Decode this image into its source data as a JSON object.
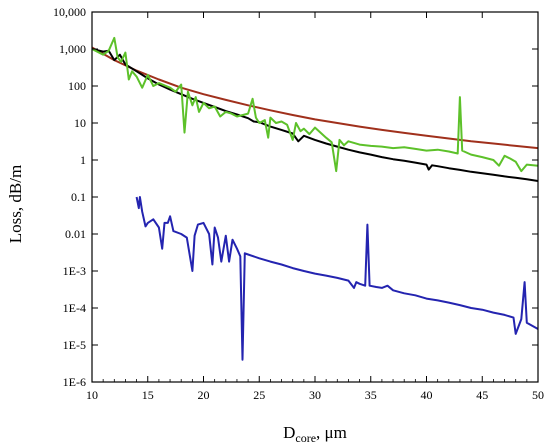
{
  "chart_data": {
    "type": "line",
    "xlabel": "D",
    "xlabel_sub": "core",
    "xlabel_unit": ", μm",
    "ylabel": "Loss, dB/m",
    "xlim": [
      10,
      50
    ],
    "ylim": [
      1e-06,
      10000
    ],
    "yscale": "log",
    "grid": false,
    "x_ticks": [
      10,
      15,
      20,
      25,
      30,
      35,
      40,
      45,
      50
    ],
    "x_tick_labels": [
      "10",
      "15",
      "20",
      "25",
      "30",
      "35",
      "40",
      "45",
      "50"
    ],
    "y_ticks": [
      1e-06,
      1e-05,
      0.0001,
      0.001,
      0.01,
      0.1,
      1,
      10,
      100,
      1000,
      10000
    ],
    "y_tick_labels": [
      "1E-6",
      "1E-5",
      "1E-4",
      "1E-3",
      "0.01",
      "0.1",
      "1",
      "10",
      "100",
      "1,000",
      "10,000"
    ],
    "series": [
      {
        "color": "#a0301c",
        "x": [
          10,
          12,
          14,
          16,
          18,
          20,
          22,
          24,
          26,
          28,
          30,
          32,
          34,
          36,
          38,
          40,
          42,
          44,
          46,
          48,
          50
        ],
        "y": [
          1100,
          500,
          260,
          150,
          90,
          60,
          42,
          30,
          22,
          16.5,
          12.5,
          10,
          8,
          6.5,
          5.4,
          4.5,
          3.8,
          3.2,
          2.8,
          2.4,
          2.1
        ]
      },
      {
        "color": "#000000",
        "x": [
          10,
          11,
          11.5,
          12,
          12.5,
          13,
          14,
          15,
          16,
          17,
          18,
          19,
          20,
          21,
          22,
          23,
          24,
          24.5,
          25,
          26,
          27,
          28,
          28.5,
          29,
          30,
          31,
          32,
          33,
          34,
          35,
          36,
          37,
          38,
          39,
          40,
          40.2,
          40.5,
          41,
          42,
          43,
          44,
          45,
          46,
          47,
          48,
          49,
          50
        ],
        "y": [
          1000,
          850,
          900,
          500,
          700,
          380,
          250,
          160,
          110,
          80,
          60,
          45,
          35,
          27,
          21,
          17,
          13.5,
          11,
          10.5,
          8,
          6.5,
          5.2,
          3.2,
          4.5,
          3.5,
          2.8,
          2.3,
          1.9,
          1.6,
          1.4,
          1.2,
          1.05,
          0.95,
          0.85,
          0.75,
          0.55,
          0.72,
          0.68,
          0.6,
          0.54,
          0.48,
          0.44,
          0.4,
          0.36,
          0.33,
          0.3,
          0.27
        ]
      },
      {
        "color": "#5dc12a",
        "x": [
          10,
          11,
          11.5,
          12,
          12.3,
          12.6,
          13,
          13.3,
          13.6,
          14,
          14.5,
          15,
          15.5,
          16,
          17,
          17.5,
          18,
          18.3,
          18.6,
          19,
          19.3,
          19.6,
          20,
          20.5,
          21,
          21.5,
          22,
          22.5,
          23,
          24,
          24.4,
          24.7,
          25,
          25.5,
          25.8,
          26,
          26.5,
          27,
          27.5,
          28,
          28.3,
          28.7,
          29,
          29.5,
          30,
          31,
          31.5,
          31.9,
          32.2,
          32.6,
          33,
          34,
          35,
          36,
          37,
          38,
          39,
          40,
          41,
          42,
          42.8,
          43,
          43.2,
          44,
          45,
          46,
          46.5,
          47,
          47.5,
          48,
          48.5,
          49,
          50
        ],
        "y": [
          1000,
          700,
          900,
          2000,
          600,
          450,
          800,
          150,
          250,
          180,
          90,
          200,
          100,
          120,
          90,
          70,
          110,
          5.5,
          70,
          30,
          50,
          20,
          35,
          25,
          28,
          15,
          20,
          18,
          15,
          18,
          45,
          14,
          10,
          12,
          4,
          14,
          10,
          11,
          9,
          3.5,
          10,
          6,
          7,
          5,
          7.5,
          4,
          3,
          0.5,
          3.5,
          2.5,
          3.2,
          2.6,
          2.4,
          2.3,
          2.1,
          2.2,
          2,
          1.8,
          1.9,
          1.7,
          1.5,
          50,
          1.8,
          1.4,
          1.2,
          1,
          0.7,
          1.3,
          1.1,
          0.9,
          0.5,
          0.75,
          0.7
        ]
      },
      {
        "color": "#2424b0",
        "x": [
          14,
          14.2,
          14.3,
          14.5,
          14.8,
          15,
          15.5,
          16,
          16.3,
          16.5,
          16.8,
          17,
          17.3,
          18,
          18.5,
          19,
          19.2,
          19.5,
          20,
          20.5,
          20.8,
          21,
          21.3,
          21.6,
          22,
          22.3,
          22.6,
          23,
          23.3,
          23.5,
          23.7,
          24,
          25,
          26,
          27,
          28,
          29,
          30,
          31,
          32,
          33,
          33.5,
          33.7,
          34,
          34.5,
          34.7,
          34.9,
          35.5,
          36,
          36.5,
          37,
          38,
          39,
          40,
          41,
          42,
          43,
          44,
          45,
          46,
          47,
          47.8,
          48,
          48.5,
          48.8,
          49,
          50
        ],
        "y": [
          0.1,
          0.05,
          0.1,
          0.04,
          0.016,
          0.02,
          0.025,
          0.015,
          0.004,
          0.02,
          0.02,
          0.03,
          0.012,
          0.01,
          0.008,
          0.001,
          0.009,
          0.018,
          0.02,
          0.01,
          0.0015,
          0.015,
          0.008,
          0.0018,
          0.009,
          0.0018,
          0.007,
          0.004,
          0.0025,
          4e-06,
          0.003,
          0.0028,
          0.0022,
          0.0018,
          0.0015,
          0.0012,
          0.001,
          0.00085,
          0.00075,
          0.00065,
          0.00055,
          0.00035,
          0.0005,
          0.00045,
          0.0004,
          0.018,
          0.0004,
          0.00037,
          0.00035,
          0.0004,
          0.0003,
          0.00025,
          0.00022,
          0.00018,
          0.00016,
          0.00014,
          0.00012,
          0.0001,
          9e-05,
          7.5e-05,
          6.5e-05,
          5.5e-05,
          2e-05,
          5e-05,
          0.0005,
          4e-05,
          2.7e-05
        ]
      }
    ]
  }
}
